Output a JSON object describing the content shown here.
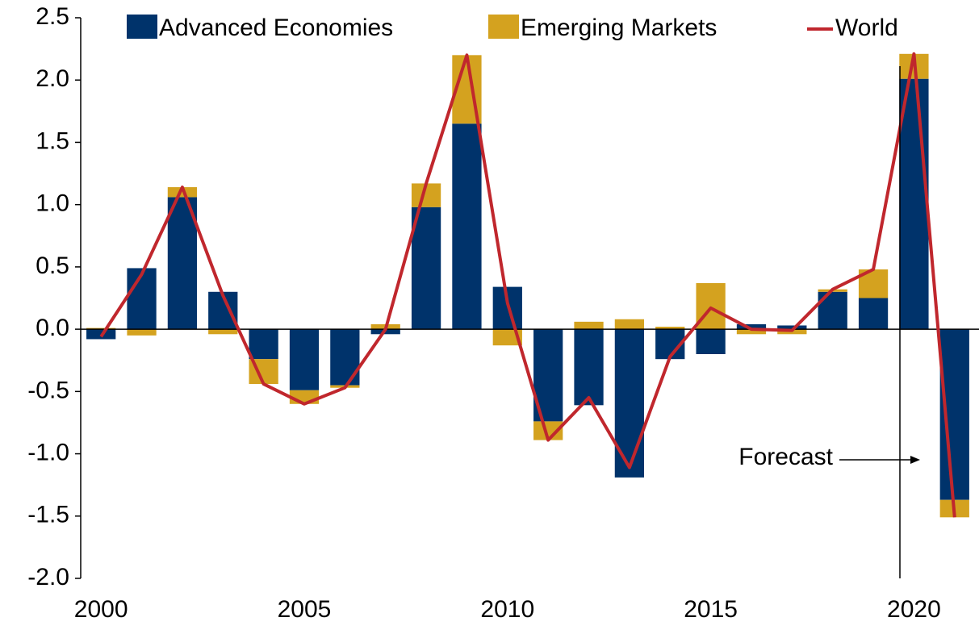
{
  "chart_data": {
    "type": "bar",
    "x": [
      2000,
      2001,
      2002,
      2003,
      2004,
      2005,
      2006,
      2007,
      2008,
      2009,
      2010,
      2011,
      2012,
      2013,
      2014,
      2015,
      2016,
      2017,
      2018,
      2019,
      2020,
      2021
    ],
    "series": [
      {
        "name": "Advanced Economies",
        "color": "#00336b",
        "type": "bar",
        "values": [
          -0.08,
          0.49,
          1.06,
          0.3,
          -0.24,
          -0.49,
          -0.45,
          -0.04,
          0.98,
          1.65,
          0.34,
          -0.74,
          -0.61,
          -1.19,
          -0.24,
          -0.2,
          0.04,
          0.03,
          0.3,
          0.25,
          2.01,
          -1.37
        ]
      },
      {
        "name": "Emerging Markets",
        "color": "#d4a21f",
        "type": "bar",
        "values": [
          0.01,
          -0.05,
          0.08,
          -0.04,
          -0.2,
          -0.11,
          -0.02,
          0.04,
          0.19,
          0.55,
          -0.13,
          -0.15,
          0.06,
          0.08,
          0.02,
          0.37,
          -0.04,
          -0.04,
          0.02,
          0.23,
          0.2,
          -0.14
        ]
      },
      {
        "name": "World",
        "color": "#c0272d",
        "type": "line",
        "values": [
          -0.06,
          0.44,
          1.14,
          0.27,
          -0.44,
          -0.6,
          -0.47,
          0.0,
          1.17,
          2.2,
          0.21,
          -0.89,
          -0.55,
          -1.11,
          -0.22,
          0.17,
          0.0,
          -0.01,
          0.32,
          0.48,
          2.21,
          -1.51
        ]
      }
    ],
    "annotation": "Forecast",
    "xlim": [
      1999.5,
      2021.6
    ],
    "xticks": [
      2000,
      2005,
      2010,
      2015,
      2020
    ],
    "ylim": [
      -2.0,
      2.5
    ],
    "yticks": [
      {
        "value": -2,
        "label": "-2.0"
      },
      -1.5,
      {
        "value": -1,
        "label": "-1.0"
      },
      -0.5,
      {
        "value": 0,
        "label": "0.0"
      },
      0.5,
      {
        "value": 1,
        "label": "1.0"
      },
      1.5,
      {
        "value": 2,
        "label": "2.0"
      },
      2.5
    ],
    "legend": "top"
  }
}
